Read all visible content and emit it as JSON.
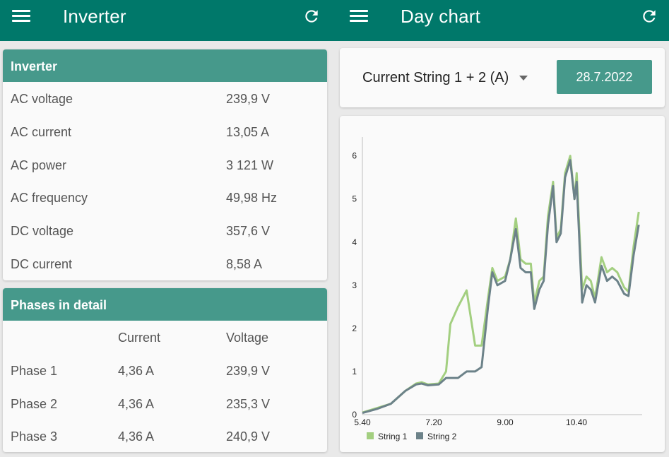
{
  "left": {
    "title": "Inverter",
    "inverter_card": {
      "header": "Inverter",
      "rows": [
        {
          "label": "AC voltage",
          "value": "239,9 V"
        },
        {
          "label": "AC current",
          "value": "13,05 A"
        },
        {
          "label": "AC power",
          "value": "3 121 W"
        },
        {
          "label": "AC frequency",
          "value": "49,98 Hz"
        },
        {
          "label": "DC voltage",
          "value": "357,6 V"
        },
        {
          "label": "DC current",
          "value": "8,58 A"
        }
      ]
    },
    "phases_card": {
      "header": "Phases in detail",
      "col_current": "Current",
      "col_voltage": "Voltage",
      "rows": [
        {
          "phase": "Phase 1",
          "current": "4,36 A",
          "voltage": "239,9 V"
        },
        {
          "phase": "Phase 2",
          "current": "4,36 A",
          "voltage": "235,3 V"
        },
        {
          "phase": "Phase 3",
          "current": "4,36 A",
          "voltage": "240,9 V"
        }
      ]
    }
  },
  "right": {
    "title": "Day chart",
    "selector_value": "Current String 1 + 2 (A)",
    "date_value": "28.7.2022"
  },
  "icons": {
    "menu": "menu-icon",
    "refresh": "refresh-icon",
    "dropdown": "dropdown-arrow-icon"
  },
  "colors": {
    "appbar": "#00786a",
    "card_header": "#46998b",
    "string1": "#a3cf80",
    "string2": "#6c8289"
  },
  "chart_data": {
    "type": "line",
    "title": "",
    "xlabel": "",
    "ylabel": "",
    "x_unit": "hours (decimal, 5.6667 = 5.40)",
    "xlim": [
      5.6667,
      12.2
    ],
    "ylim": [
      0,
      6.6
    ],
    "yticks": [
      0,
      1,
      2,
      3,
      4,
      5,
      6
    ],
    "xtick_labels": [
      "5.40",
      "7.20",
      "9.00",
      "10.40"
    ],
    "xtick_positions": [
      5.6667,
      7.3333,
      9.0,
      10.6667
    ],
    "legend": "bottom-left",
    "series": [
      {
        "name": "String 1",
        "points": [
          [
            5.67,
            0.05
          ],
          [
            6.0,
            0.15
          ],
          [
            6.33,
            0.25
          ],
          [
            6.67,
            0.55
          ],
          [
            6.92,
            0.72
          ],
          [
            7.05,
            0.75
          ],
          [
            7.2,
            0.7
          ],
          [
            7.45,
            0.72
          ],
          [
            7.62,
            1.0
          ],
          [
            7.72,
            2.1
          ],
          [
            7.9,
            2.5
          ],
          [
            8.1,
            2.88
          ],
          [
            8.3,
            1.6
          ],
          [
            8.45,
            1.6
          ],
          [
            8.6,
            2.7
          ],
          [
            8.7,
            3.4
          ],
          [
            8.82,
            3.1
          ],
          [
            9.0,
            3.2
          ],
          [
            9.12,
            3.6
          ],
          [
            9.25,
            4.55
          ],
          [
            9.36,
            3.6
          ],
          [
            9.48,
            3.5
          ],
          [
            9.6,
            3.5
          ],
          [
            9.68,
            2.6
          ],
          [
            9.8,
            3.1
          ],
          [
            9.9,
            3.2
          ],
          [
            10.0,
            4.6
          ],
          [
            10.12,
            5.4
          ],
          [
            10.2,
            4.1
          ],
          [
            10.3,
            4.3
          ],
          [
            10.4,
            5.6
          ],
          [
            10.52,
            6.0
          ],
          [
            10.62,
            5.0
          ],
          [
            10.67,
            5.6
          ],
          [
            10.8,
            2.9
          ],
          [
            10.9,
            3.2
          ],
          [
            11.0,
            3.1
          ],
          [
            11.1,
            2.7
          ],
          [
            11.25,
            3.65
          ],
          [
            11.38,
            3.3
          ],
          [
            11.5,
            3.4
          ],
          [
            11.62,
            3.3
          ],
          [
            11.78,
            2.95
          ],
          [
            11.88,
            2.85
          ],
          [
            12.0,
            3.9
          ],
          [
            12.12,
            4.7
          ]
        ]
      },
      {
        "name": "String 2",
        "points": [
          [
            5.67,
            0.04
          ],
          [
            6.0,
            0.13
          ],
          [
            6.33,
            0.25
          ],
          [
            6.67,
            0.55
          ],
          [
            6.92,
            0.7
          ],
          [
            7.05,
            0.72
          ],
          [
            7.2,
            0.68
          ],
          [
            7.45,
            0.7
          ],
          [
            7.62,
            0.85
          ],
          [
            7.72,
            0.85
          ],
          [
            7.9,
            0.85
          ],
          [
            8.1,
            1.0
          ],
          [
            8.3,
            1.0
          ],
          [
            8.45,
            1.1
          ],
          [
            8.6,
            2.5
          ],
          [
            8.7,
            3.3
          ],
          [
            8.82,
            3.0
          ],
          [
            9.0,
            3.1
          ],
          [
            9.12,
            3.6
          ],
          [
            9.25,
            4.3
          ],
          [
            9.36,
            3.4
          ],
          [
            9.48,
            3.3
          ],
          [
            9.6,
            3.3
          ],
          [
            9.68,
            2.45
          ],
          [
            9.8,
            2.9
          ],
          [
            9.9,
            3.1
          ],
          [
            10.0,
            4.4
          ],
          [
            10.12,
            5.3
          ],
          [
            10.2,
            4.0
          ],
          [
            10.3,
            4.2
          ],
          [
            10.4,
            5.5
          ],
          [
            10.52,
            5.9
          ],
          [
            10.62,
            5.0
          ],
          [
            10.67,
            5.4
          ],
          [
            10.8,
            2.6
          ],
          [
            10.9,
            3.0
          ],
          [
            11.0,
            2.9
          ],
          [
            11.1,
            2.6
          ],
          [
            11.25,
            3.45
          ],
          [
            11.38,
            3.1
          ],
          [
            11.5,
            3.2
          ],
          [
            11.62,
            3.1
          ],
          [
            11.78,
            2.8
          ],
          [
            11.88,
            2.75
          ],
          [
            12.0,
            3.7
          ],
          [
            12.12,
            4.4
          ]
        ]
      }
    ]
  }
}
